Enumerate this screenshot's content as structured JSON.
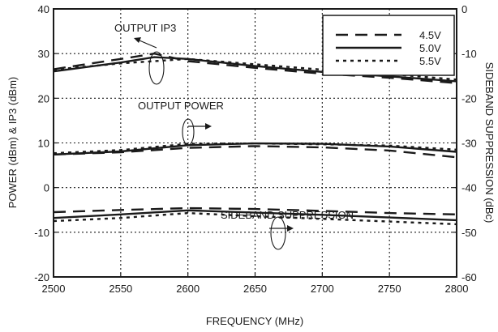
{
  "chart_data": {
    "type": "line",
    "xlabel": "FREQUENCY (MHz)",
    "ylabel": "POWER (dBm) & IP3 (dBm)",
    "y2label": "SIDEBAND SUPPRESSION (dBc)",
    "xlim": [
      2500,
      2800
    ],
    "ylim": [
      -20,
      40
    ],
    "y2lim": [
      -60,
      0
    ],
    "x_ticks": [
      "2500",
      "2550",
      "2600",
      "2650",
      "2700",
      "2750",
      "2800"
    ],
    "y_ticks": [
      "-20",
      "-10",
      "0",
      "10",
      "20",
      "30",
      "40"
    ],
    "y2_ticks": [
      "-60",
      "-50",
      "-40",
      "-30",
      "-20",
      "-10",
      "0"
    ],
    "grid": true,
    "legend_position": "top-right",
    "legend": [
      {
        "label": "4.5V",
        "style": "long-dash"
      },
      {
        "label": "5.0V",
        "style": "solid"
      },
      {
        "label": "5.5V",
        "style": "dotted"
      }
    ],
    "annotations": [
      "OUTPUT IP3",
      "OUTPUT POWER",
      "SIDEBAND SUPPRESSION"
    ],
    "curves": [
      {
        "group": "OUTPUT IP3",
        "axis": "left",
        "style": "long-dash",
        "x": [
          2500,
          2550,
          2575,
          2600,
          2650,
          2700,
          2750,
          2800
        ],
        "y": [
          26.5,
          28.8,
          30.0,
          28.3,
          26.8,
          25.5,
          24.6,
          23.4
        ]
      },
      {
        "group": "OUTPUT IP3",
        "axis": "left",
        "style": "solid",
        "x": [
          2500,
          2550,
          2575,
          2600,
          2650,
          2700,
          2750,
          2800
        ],
        "y": [
          26.0,
          28.0,
          29.2,
          28.8,
          27.2,
          25.9,
          24.9,
          23.8
        ]
      },
      {
        "group": "OUTPUT IP3",
        "axis": "left",
        "style": "dotted",
        "x": [
          2500,
          2550,
          2575,
          2600,
          2650,
          2700,
          2750,
          2800
        ],
        "y": [
          26.4,
          27.8,
          28.3,
          28.8,
          27.6,
          26.4,
          25.4,
          24.2
        ]
      },
      {
        "group": "OUTPUT POWER",
        "axis": "left",
        "style": "long-dash",
        "x": [
          2500,
          2550,
          2600,
          2650,
          2700,
          2750,
          2800
        ],
        "y": [
          7.4,
          7.9,
          8.9,
          9.3,
          9.0,
          8.3,
          6.8
        ]
      },
      {
        "group": "OUTPUT POWER",
        "axis": "left",
        "style": "solid",
        "x": [
          2500,
          2550,
          2600,
          2650,
          2700,
          2750,
          2800
        ],
        "y": [
          7.4,
          8.1,
          9.5,
          9.9,
          9.8,
          9.2,
          8.0
        ]
      },
      {
        "group": "OUTPUT POWER",
        "axis": "left",
        "style": "dotted",
        "x": [
          2500,
          2550,
          2600,
          2650,
          2700,
          2750,
          2800
        ],
        "y": [
          7.7,
          8.4,
          9.8,
          9.9,
          9.7,
          9.4,
          8.5
        ]
      },
      {
        "group": "SIDEBAND SUPPRESSION",
        "axis": "right",
        "style": "long-dash",
        "x": [
          2500,
          2550,
          2600,
          2650,
          2700,
          2750,
          2800
        ],
        "y": [
          -45.5,
          -45.0,
          -44.6,
          -44.8,
          -45.2,
          -45.7,
          -46.0
        ]
      },
      {
        "group": "SIDEBAND SUPPRESSION",
        "axis": "right",
        "style": "solid",
        "x": [
          2500,
          2550,
          2600,
          2650,
          2700,
          2750,
          2800
        ],
        "y": [
          -46.8,
          -46.0,
          -45.1,
          -45.6,
          -46.1,
          -46.7,
          -47.3
        ]
      },
      {
        "group": "SIDEBAND SUPPRESSION",
        "axis": "right",
        "style": "dotted",
        "x": [
          2500,
          2550,
          2600,
          2650,
          2700,
          2750,
          2800
        ],
        "y": [
          -47.5,
          -46.8,
          -45.7,
          -46.4,
          -47.0,
          -47.6,
          -48.2
        ]
      }
    ]
  }
}
